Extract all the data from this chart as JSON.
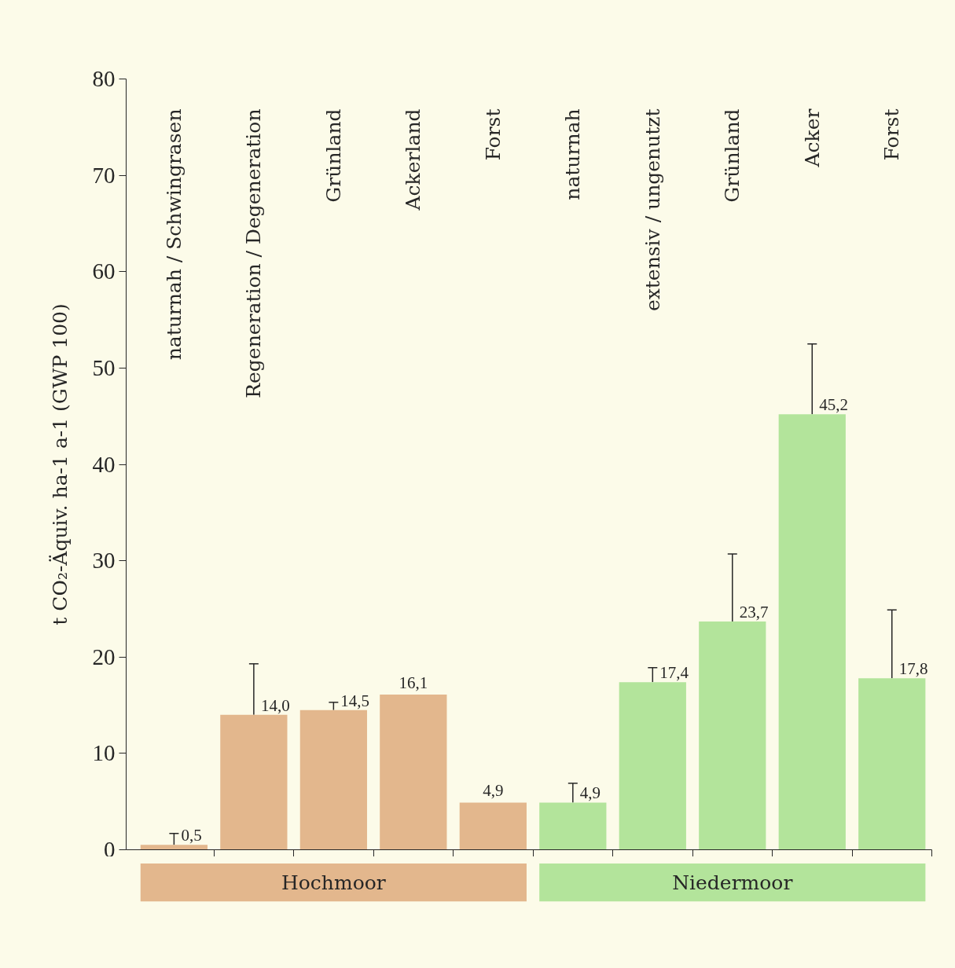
{
  "chart_data": {
    "type": "bar",
    "ylabel": "t CO₂-Äquiv. ha-1 a-1 (GWP 100)",
    "categories": [
      "naturnah / Schwingrasen",
      "Regeneration / Degeneration",
      "Grünland",
      "Ackerland",
      "Forst",
      "naturnah",
      "extensiv / ungenutzt",
      "Grünland",
      "Acker",
      "Forst"
    ],
    "series": [
      {
        "name": "Hochmoor",
        "color": "#e3b78d",
        "values": [
          0.5,
          14.0,
          14.5,
          16.1,
          4.9,
          null,
          null,
          null,
          null,
          null
        ],
        "errors": [
          [
            0.5,
            1.7
          ],
          [
            14.0,
            19.3
          ],
          [
            14.5,
            15.3
          ],
          null,
          null,
          null,
          null,
          null,
          null,
          null
        ],
        "value_labels": [
          "0,5",
          "14,0",
          "14,5",
          "16,1",
          "4,9",
          null,
          null,
          null,
          null,
          null
        ]
      },
      {
        "name": "Niedermoor",
        "color": "#b3e49b",
        "values": [
          null,
          null,
          null,
          null,
          null,
          4.9,
          17.4,
          23.7,
          45.2,
          17.8
        ],
        "errors": [
          null,
          null,
          null,
          null,
          null,
          [
            4.9,
            6.9
          ],
          [
            17.4,
            18.9
          ],
          [
            23.7,
            30.7
          ],
          [
            45.2,
            52.5
          ],
          [
            17.8,
            24.9
          ]
        ],
        "value_labels": [
          null,
          null,
          null,
          null,
          null,
          "4,9",
          "17,4",
          "23,7",
          "45,2",
          "17,8"
        ]
      }
    ],
    "ylim": [
      0,
      80
    ],
    "yticks": [
      0,
      10,
      20,
      30,
      40,
      50,
      60,
      70,
      80
    ],
    "legend": "bottom"
  }
}
